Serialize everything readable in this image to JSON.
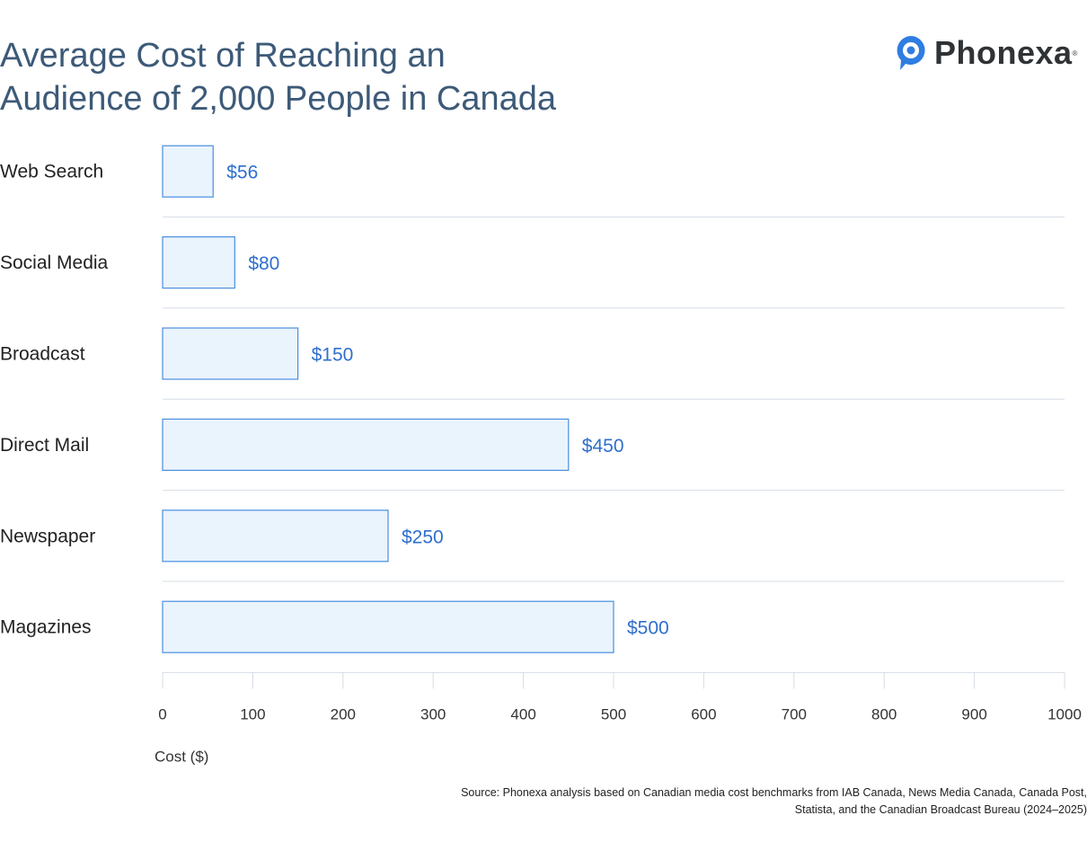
{
  "title_lines": [
    "Average Cost of Reaching an",
    "Audience of 2,000 People in Canada"
  ],
  "logo": {
    "text": "Phonexa",
    "icon": "speech-bubble-pin-icon",
    "registered": "®"
  },
  "source": "Source: Phonexa analysis based on Canadian media cost benchmarks from IAB Canada, News Media Canada, Canada Post, Statista, and the Canadian Broadcast Bureau (2024–2025)",
  "colors": {
    "bar_fill": "#eaf4fd",
    "bar_stroke": "#4a8ee0",
    "value_label": "#2f6fce",
    "title": "#3d5a78",
    "logo_icon": "#2f7de1",
    "grid": "#d6dde6"
  },
  "chart_data": {
    "type": "bar",
    "orientation": "horizontal",
    "title": "Average Cost of Reaching an Audience of 2,000 People in Canada",
    "categories": [
      "Web Search",
      "Social Media",
      "Broadcast",
      "Direct Mail",
      "Newspaper",
      "Magazines"
    ],
    "values": [
      56,
      80,
      150,
      450,
      250,
      500
    ],
    "value_labels": [
      "$56",
      "$80",
      "$150",
      "$450",
      "$250",
      "$500"
    ],
    "xlabel": "Cost ($)",
    "ylabel": "",
    "xlim": [
      0,
      1000
    ],
    "xticks": [
      0,
      100,
      200,
      300,
      400,
      500,
      600,
      700,
      800,
      900,
      1000
    ],
    "grid": "horizontal separators between categories",
    "legend": "none"
  }
}
